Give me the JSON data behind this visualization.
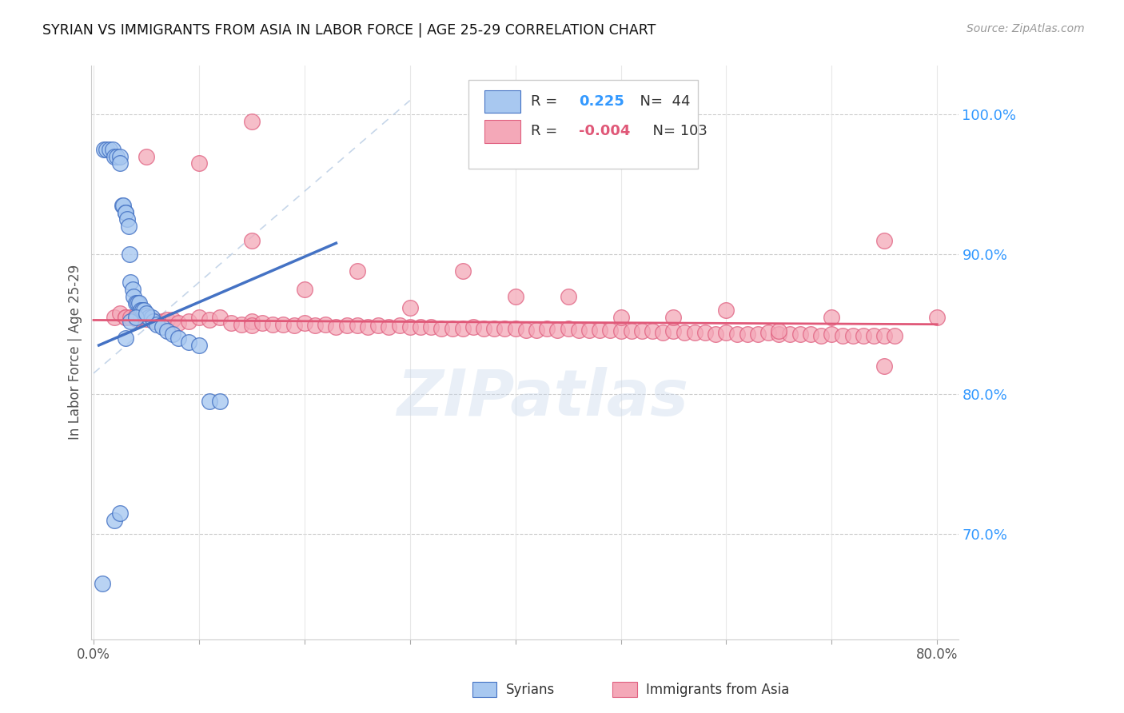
{
  "title": "SYRIAN VS IMMIGRANTS FROM ASIA IN LABOR FORCE | AGE 25-29 CORRELATION CHART",
  "source": "Source: ZipAtlas.com",
  "ylabel": "In Labor Force | Age 25-29",
  "watermark": "ZIPatlas",
  "xlim": [
    -0.002,
    0.82
  ],
  "ylim": [
    0.625,
    1.035
  ],
  "ytick_values": [
    0.7,
    0.8,
    0.9,
    1.0
  ],
  "ytick_labels": [
    "70.0%",
    "80.0%",
    "90.0%",
    "100.0%"
  ],
  "xtick_values": [
    0.0,
    0.1,
    0.2,
    0.3,
    0.4,
    0.5,
    0.6,
    0.7,
    0.8
  ],
  "color_blue_fill": "#A8C8F0",
  "color_blue_edge": "#4472C4",
  "color_pink_fill": "#F4A8B8",
  "color_pink_edge": "#E06080",
  "color_blue_line": "#4472C4",
  "color_pink_line": "#E05878",
  "color_diag": "#B8CCE4",
  "color_grid": "#E0E0E0",
  "legend_R1": "0.225",
  "legend_N1": "44",
  "legend_R2": "-0.004",
  "legend_N2": "103",
  "legend_label1": "Syrians",
  "legend_label2": "Immigrants from Asia",
  "syrians_x": [
    0.008,
    0.01,
    0.012,
    0.015,
    0.018,
    0.02,
    0.022,
    0.025,
    0.025,
    0.027,
    0.028,
    0.03,
    0.03,
    0.032,
    0.033,
    0.034,
    0.035,
    0.037,
    0.038,
    0.04,
    0.042,
    0.043,
    0.045,
    0.046,
    0.048,
    0.05,
    0.052,
    0.055,
    0.057,
    0.06,
    0.065,
    0.07,
    0.075,
    0.08,
    0.09,
    0.1,
    0.11,
    0.12,
    0.02,
    0.025,
    0.03,
    0.035,
    0.04,
    0.05
  ],
  "syrians_y": [
    0.665,
    0.975,
    0.975,
    0.975,
    0.975,
    0.97,
    0.97,
    0.97,
    0.965,
    0.935,
    0.935,
    0.93,
    0.93,
    0.925,
    0.92,
    0.9,
    0.88,
    0.875,
    0.87,
    0.865,
    0.865,
    0.865,
    0.86,
    0.86,
    0.86,
    0.856,
    0.855,
    0.855,
    0.852,
    0.85,
    0.848,
    0.845,
    0.843,
    0.84,
    0.837,
    0.835,
    0.795,
    0.795,
    0.71,
    0.715,
    0.84,
    0.852,
    0.855,
    0.858
  ],
  "asia_x": [
    0.02,
    0.025,
    0.03,
    0.03,
    0.035,
    0.04,
    0.04,
    0.045,
    0.05,
    0.05,
    0.055,
    0.06,
    0.065,
    0.07,
    0.075,
    0.08,
    0.09,
    0.1,
    0.11,
    0.12,
    0.13,
    0.14,
    0.15,
    0.15,
    0.16,
    0.17,
    0.18,
    0.19,
    0.2,
    0.21,
    0.22,
    0.23,
    0.24,
    0.25,
    0.26,
    0.27,
    0.28,
    0.29,
    0.3,
    0.31,
    0.32,
    0.33,
    0.34,
    0.35,
    0.36,
    0.37,
    0.38,
    0.39,
    0.4,
    0.41,
    0.42,
    0.43,
    0.44,
    0.45,
    0.46,
    0.47,
    0.48,
    0.49,
    0.5,
    0.51,
    0.52,
    0.53,
    0.54,
    0.55,
    0.56,
    0.57,
    0.58,
    0.59,
    0.6,
    0.61,
    0.62,
    0.63,
    0.64,
    0.65,
    0.66,
    0.67,
    0.68,
    0.69,
    0.7,
    0.71,
    0.72,
    0.73,
    0.74,
    0.75,
    0.76,
    0.2,
    0.3,
    0.4,
    0.5,
    0.6,
    0.7,
    0.75,
    0.15,
    0.25,
    0.35,
    0.45,
    0.55,
    0.65,
    0.75,
    0.8,
    0.05,
    0.1,
    0.15
  ],
  "asia_y": [
    0.855,
    0.858,
    0.855,
    0.855,
    0.855,
    0.856,
    0.854,
    0.855,
    0.854,
    0.855,
    0.853,
    0.852,
    0.852,
    0.853,
    0.853,
    0.851,
    0.852,
    0.855,
    0.853,
    0.855,
    0.851,
    0.85,
    0.852,
    0.849,
    0.851,
    0.85,
    0.85,
    0.849,
    0.851,
    0.849,
    0.85,
    0.848,
    0.849,
    0.849,
    0.848,
    0.849,
    0.848,
    0.849,
    0.848,
    0.848,
    0.848,
    0.847,
    0.847,
    0.847,
    0.848,
    0.847,
    0.847,
    0.847,
    0.847,
    0.846,
    0.846,
    0.847,
    0.846,
    0.847,
    0.846,
    0.846,
    0.846,
    0.846,
    0.845,
    0.845,
    0.845,
    0.845,
    0.844,
    0.845,
    0.844,
    0.844,
    0.844,
    0.843,
    0.844,
    0.843,
    0.843,
    0.843,
    0.844,
    0.843,
    0.843,
    0.843,
    0.843,
    0.842,
    0.843,
    0.842,
    0.842,
    0.842,
    0.842,
    0.842,
    0.842,
    0.875,
    0.862,
    0.87,
    0.855,
    0.86,
    0.855,
    0.82,
    0.91,
    0.888,
    0.888,
    0.87,
    0.855,
    0.845,
    0.91,
    0.855,
    0.97,
    0.965,
    0.995
  ]
}
